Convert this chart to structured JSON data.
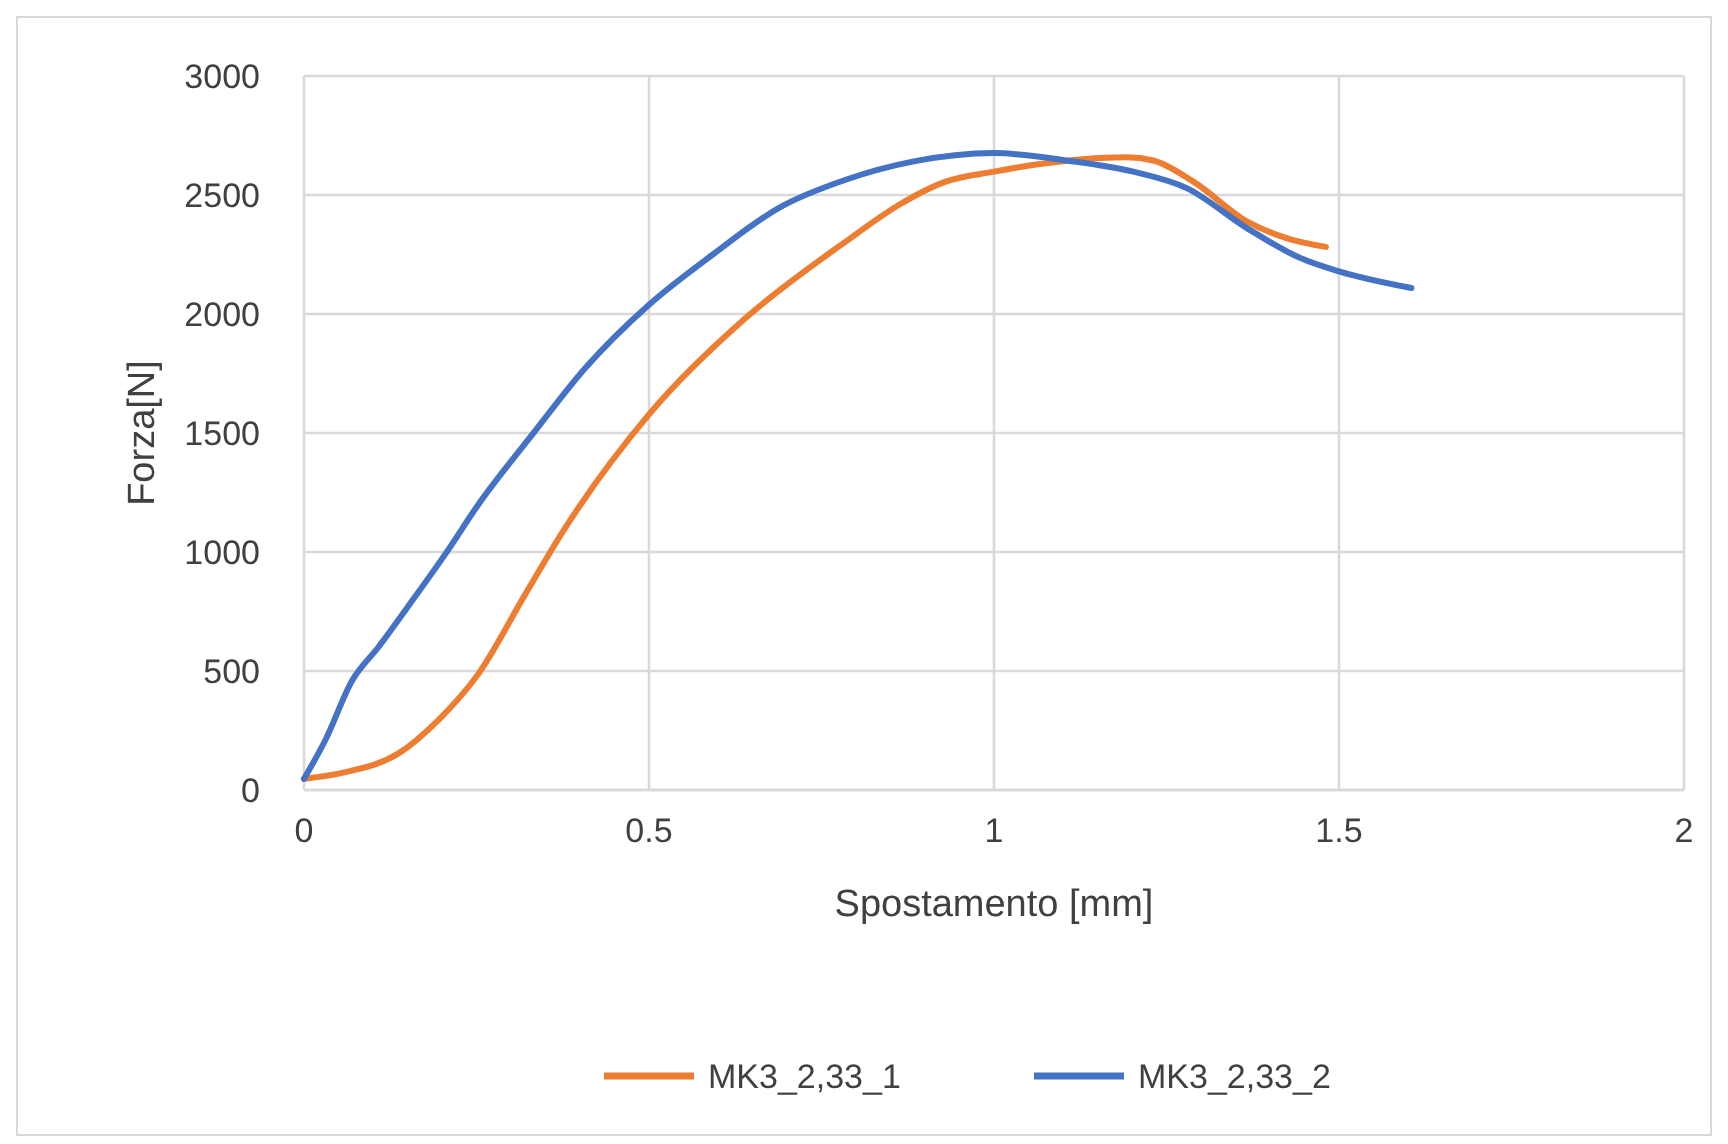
{
  "chart_data": {
    "type": "line",
    "xlabel": "Spostamento [mm]",
    "ylabel": "Forza[N]",
    "xlim": [
      0,
      2
    ],
    "xticks": [
      0,
      0.5,
      1,
      1.5,
      2
    ],
    "ylim": [
      0,
      3000
    ],
    "yticks": [
      0,
      500,
      1000,
      1500,
      2000,
      2500,
      3000
    ],
    "grid": true,
    "legend": "bottom",
    "marker": "none",
    "line_style": "solid",
    "series": [
      {
        "name": "MK3_2,33_1",
        "color": "#ed7d31",
        "x": [
          0,
          0.06,
          0.137,
          0.195,
          0.253,
          0.321,
          0.379,
          0.5,
          0.64,
          0.785,
          0.862,
          0.93,
          1.0,
          1.056,
          1.192,
          1.231,
          1.289,
          1.367,
          1.425,
          1.481
        ],
        "values": [
          47,
          75,
          154,
          295,
          489,
          824,
          1103,
          1578,
          1983,
          2304,
          2458,
          2556,
          2598,
          2626,
          2659,
          2645,
          2556,
          2388,
          2318,
          2282
        ]
      },
      {
        "name": "MK3_2,33_2",
        "color": "#4472c4",
        "x": [
          0,
          0.031,
          0.07,
          0.108,
          0.157,
          0.205,
          0.253,
          0.331,
          0.408,
          0.5,
          0.592,
          0.689,
          0.785,
          0.882,
          1.0,
          1.105,
          1.202,
          1.28,
          1.367,
          1.444,
          1.5,
          1.605
        ],
        "values": [
          47,
          210,
          461,
          601,
          796,
          992,
          1201,
          1494,
          1774,
          2039,
          2249,
          2447,
          2564,
          2640,
          2676,
          2645,
          2598,
          2528,
          2360,
          2235,
          2179,
          2109
        ]
      }
    ]
  }
}
